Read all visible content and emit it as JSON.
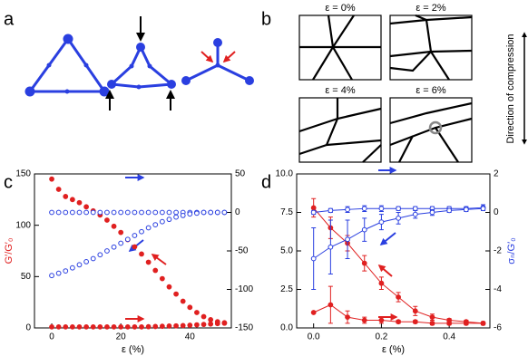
{
  "panel_labels": [
    "a",
    "b",
    "c",
    "d"
  ],
  "strain_panels": [
    "ε = 0%",
    "ε = 2%",
    "ε = 4%",
    "ε = 6%"
  ],
  "compression_label": "Direction of compression",
  "chart_data": [
    {
      "type": "scatter",
      "xlabel": "ε (%)",
      "ylabel": "G′/G′₀",
      "ylabel_color": "#e02020",
      "x": [
        0,
        2,
        4,
        6,
        8,
        10,
        12,
        14,
        16,
        18,
        20,
        22,
        24,
        26,
        28,
        30,
        32,
        34,
        36,
        38,
        40,
        42,
        44,
        46,
        48,
        50
      ],
      "xlim": [
        -5,
        52
      ],
      "xticks": [
        0,
        20,
        40
      ],
      "ylim": [
        0,
        150
      ],
      "yticks": [
        0,
        50,
        100,
        150
      ],
      "y2lim": [
        -150,
        50
      ],
      "y2ticks": [
        -150,
        -100,
        -50,
        0,
        50
      ],
      "series": [
        {
          "color": "#e02020",
          "marker": "filled",
          "values": [
            145,
            135,
            128,
            125,
            122,
            118,
            114,
            110,
            105,
            99,
            93,
            86,
            79,
            72,
            64,
            56,
            48,
            40,
            33,
            26,
            20,
            15,
            11,
            8,
            6,
            5
          ]
        },
        {
          "color": "#e02020",
          "marker": "filled",
          "values": [
            1,
            1,
            1,
            1,
            1,
            1,
            1,
            1,
            1,
            1,
            1,
            1,
            1,
            1,
            1.2,
            1.4,
            1.6,
            1.8,
            2,
            2.3,
            2.6,
            3,
            3.4,
            3.8,
            4.2,
            4.6
          ]
        },
        {
          "color": "#2a3fe0",
          "marker": "open",
          "axis": "y2",
          "values": [
            0,
            0,
            0,
            0,
            0,
            0,
            0,
            0,
            0,
            0,
            0,
            0,
            0,
            0,
            0,
            0,
            0,
            0,
            0,
            0,
            0,
            0,
            0,
            0,
            0,
            0
          ]
        },
        {
          "color": "#2a3fe0",
          "marker": "open",
          "axis": "y2",
          "values": [
            -82,
            -79,
            -76,
            -72,
            -68,
            -64,
            -60,
            -55,
            -50,
            -45,
            -40,
            -35,
            -30,
            -25,
            -20,
            -16,
            -12,
            -9,
            -6,
            -4,
            -2,
            -1,
            0,
            0,
            0,
            0
          ]
        }
      ]
    },
    {
      "type": "scatter",
      "xlabel": "ε (%)",
      "y2label": "σₙ/G′₀",
      "y2label_color": "#2a3fe0",
      "x": [
        0,
        0.05,
        0.1,
        0.15,
        0.2,
        0.25,
        0.3,
        0.35,
        0.4,
        0.45,
        0.5
      ],
      "xlim": [
        -0.05,
        0.52
      ],
      "xticks": [
        {
          "value": 0,
          "label": "0.0"
        },
        0.2,
        0.4
      ],
      "ylim": [
        0,
        10
      ],
      "yticks": [
        {
          "value": 0,
          "label": "0.0"
        },
        2.5,
        {
          "value": 5,
          "label": "5.0"
        },
        7.5,
        {
          "value": 10,
          "label": "10.0"
        }
      ],
      "y2lim": [
        -6,
        2
      ],
      "y2ticks": [
        -6,
        -4,
        -2,
        0,
        2
      ],
      "series": [
        {
          "color": "#e02020",
          "marker": "filled",
          "line": true,
          "values": [
            7.8,
            6.5,
            5.5,
            4.2,
            2.9,
            2.0,
            1.1,
            0.7,
            0.5,
            0.4,
            0.3
          ],
          "errors": [
            0.6,
            0.7,
            0.5,
            0.5,
            0.4,
            0.3,
            0.3,
            0.2,
            0.1,
            0.1,
            0.1
          ]
        },
        {
          "color": "#e02020",
          "marker": "filled",
          "line": true,
          "values": [
            1.0,
            1.5,
            0.7,
            0.5,
            0.5,
            0.4,
            0.4,
            0.3,
            0.3,
            0.3,
            0.3
          ],
          "errors": [
            0,
            1.2,
            0.4,
            0.2,
            0.2,
            0.1,
            0.1,
            0.1,
            0.1,
            0.1,
            0.1
          ]
        },
        {
          "color": "#2a3fe0",
          "marker": "open",
          "line": true,
          "axis": "y2",
          "values": [
            0.0,
            0.1,
            0.15,
            0.2,
            0.2,
            0.2,
            0.2,
            0.2,
            0.2,
            0.2,
            0.25
          ],
          "errors": [
            0.1,
            0.1,
            0.15,
            0.15,
            0.15,
            0.1,
            0.1,
            0.1,
            0.1,
            0.1,
            0.15
          ]
        },
        {
          "color": "#2a3fe0",
          "marker": "open",
          "line": true,
          "axis": "y2",
          "values": [
            -2.4,
            -1.8,
            -1.4,
            -0.9,
            -0.5,
            -0.3,
            -0.1,
            0.0,
            0.1,
            0.15,
            0.2
          ],
          "errors": [
            1.6,
            1.4,
            1.0,
            0.6,
            0.4,
            0.3,
            0.2,
            0.15,
            0.1,
            0.1,
            0.1
          ]
        }
      ]
    }
  ]
}
